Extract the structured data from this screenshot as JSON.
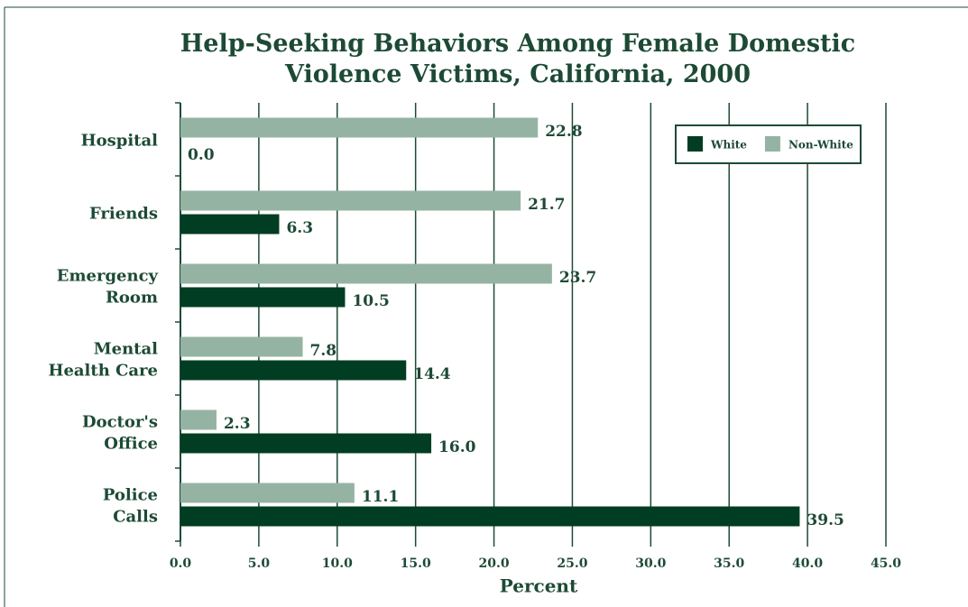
{
  "chart_data": {
    "type": "bar",
    "orientation": "horizontal",
    "title": "Help-Seeking Behaviors Among Female Domestic\nViolence Victims, California, 2000",
    "categories": [
      "Hospital",
      "Friends",
      "Emergency\nRoom",
      "Mental\nHealth Care",
      "Doctor's\nOffice",
      "Police\nCalls"
    ],
    "series": [
      {
        "name": "White",
        "color": "#003d22",
        "values": [
          0,
          6.3,
          10.5,
          14.4,
          16,
          39.5
        ],
        "value_labels": [
          "0.0",
          "6.3",
          "10.5",
          "14.4",
          "16.0",
          "39.5"
        ]
      },
      {
        "name": "Non-White",
        "color": "#95b3a3",
        "values": [
          22.8,
          21.7,
          23.7,
          7.8,
          2.3,
          11.1
        ],
        "value_labels": [
          "22.8",
          "21.7",
          "23.7",
          "7.8",
          "2.3",
          "11.1"
        ]
      }
    ],
    "xlabel": "Percent",
    "xlim": [
      0,
      45
    ],
    "xticks": [
      {
        "value": 0,
        "label": "0.0"
      },
      {
        "value": 5,
        "label": "5.0"
      },
      {
        "value": 10,
        "label": "10.0"
      },
      {
        "value": 15,
        "label": "15.0"
      },
      {
        "value": 20,
        "label": "20.0"
      },
      {
        "value": 25,
        "label": "25.0"
      },
      {
        "value": 30,
        "label": "30.0"
      },
      {
        "value": 35,
        "label": "35.0"
      },
      {
        "value": 40,
        "label": "40.0"
      },
      {
        "value": 45,
        "label": "45.0"
      }
    ],
    "grid": true,
    "legend": "upper right"
  }
}
